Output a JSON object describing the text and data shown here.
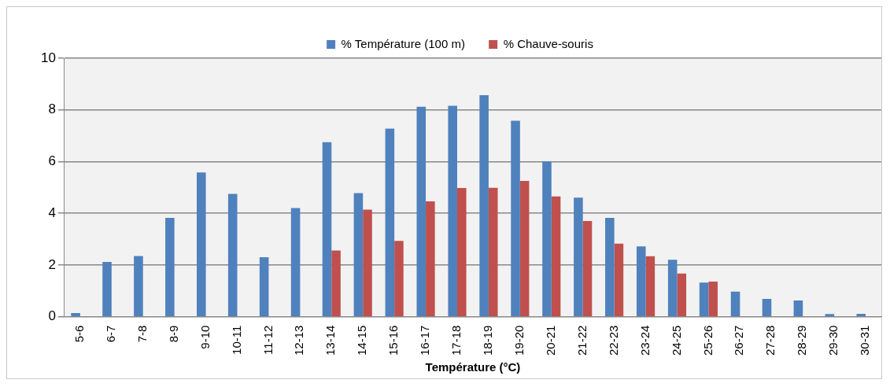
{
  "chart_data": {
    "type": "bar",
    "xlabel": "Température (°C)",
    "categories": [
      "5-6",
      "6-7",
      "7-8",
      "8-9",
      "9-10",
      "10-11",
      "11-12",
      "12-13",
      "13-14",
      "14-15",
      "15-16",
      "16-17",
      "17-18",
      "18-19",
      "19-20",
      "20-21",
      "21-22",
      "22-23",
      "23-24",
      "24-25",
      "25-26",
      "26-27",
      "27-28",
      "28-29",
      "29-30",
      "30-31"
    ],
    "series": [
      {
        "name": "% Température (100 m)",
        "color": "#4f81bd",
        "values": [
          0.14,
          2.12,
          2.35,
          3.82,
          5.58,
          4.75,
          2.3,
          4.2,
          6.75,
          4.78,
          7.28,
          8.12,
          8.16,
          8.57,
          7.58,
          6.01,
          4.61,
          3.82,
          2.72,
          2.2,
          1.32,
          0.97,
          0.69,
          0.63,
          0.1,
          0.11
        ]
      },
      {
        "name": "% Chauve-souris",
        "color": "#c0504d",
        "values": [
          0,
          0,
          0,
          0,
          0,
          0,
          0,
          0,
          2.56,
          4.14,
          2.93,
          4.46,
          4.98,
          4.99,
          5.25,
          4.65,
          3.7,
          2.83,
          2.34,
          1.67,
          1.36,
          0,
          0,
          0,
          0,
          0
        ]
      }
    ],
    "ylim": [
      0,
      10
    ],
    "yticks": [
      0,
      2,
      4,
      6,
      8,
      10
    ],
    "grid": "y",
    "legend": "top"
  }
}
